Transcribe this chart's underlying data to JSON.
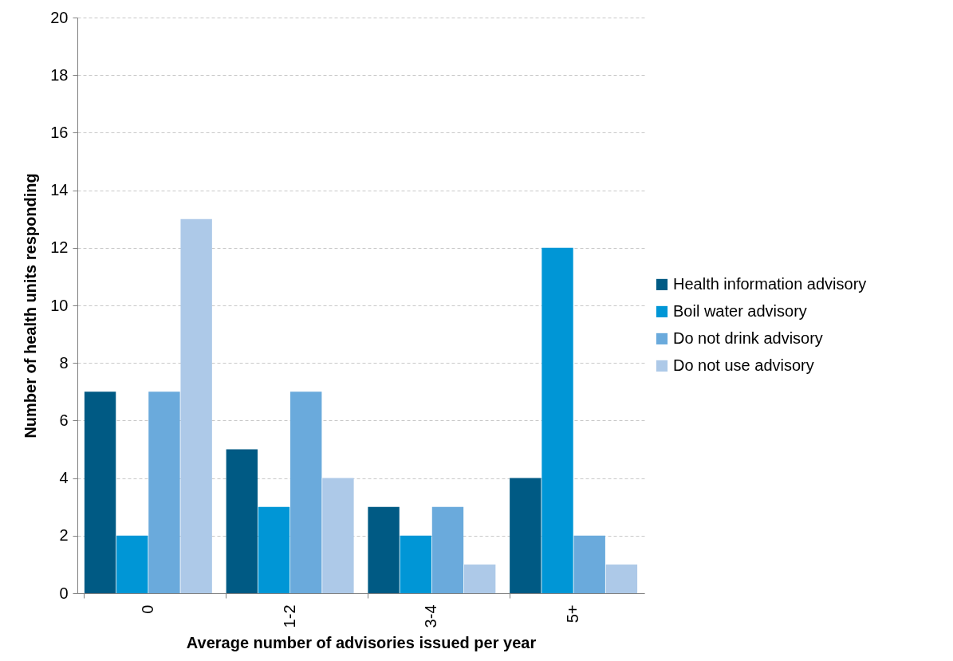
{
  "chart_data": {
    "type": "bar",
    "xlabel": "Average number of advisories issued per year",
    "ylabel": "Number of health units responding",
    "categories": [
      "0",
      "1-2",
      "3-4",
      "5+"
    ],
    "series": [
      {
        "name": "Health information advisory",
        "color": "#005a84",
        "values": [
          7,
          5,
          3,
          4
        ]
      },
      {
        "name": "Boil water advisory",
        "color": "#0096d6",
        "values": [
          2,
          3,
          2,
          12
        ]
      },
      {
        "name": "Do not drink advisory",
        "color": "#6aaadc",
        "values": [
          7,
          7,
          3,
          2
        ]
      },
      {
        "name": "Do not use advisory",
        "color": "#adc9e8",
        "values": [
          13,
          4,
          1,
          1
        ]
      }
    ],
    "ylim": [
      0,
      20
    ],
    "yticks": [
      0,
      2,
      4,
      6,
      8,
      10,
      12,
      14,
      16,
      18,
      20
    ],
    "grid": "y",
    "legend": "right"
  }
}
